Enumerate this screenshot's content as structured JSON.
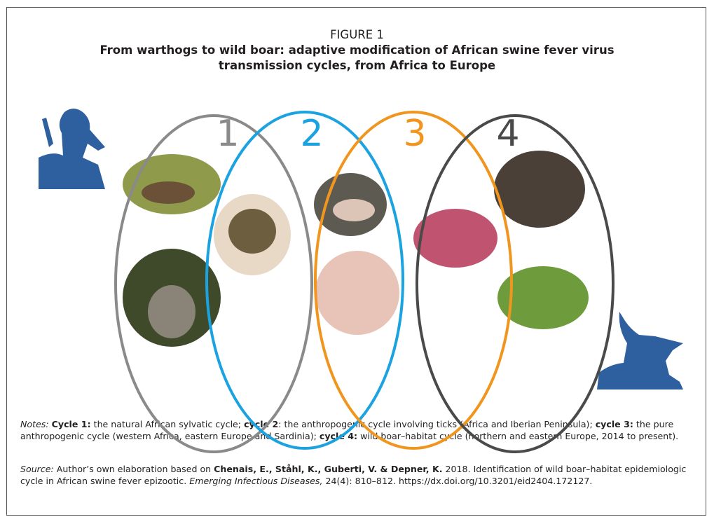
{
  "header": {
    "label": "FIGURE 1",
    "title_lines": [
      "From warthogs to wild boar: adaptive modification of African swine fever virus",
      "transmission cycles, from Africa to Europe"
    ]
  },
  "cycles": [
    {
      "number": "1",
      "color": "#8a8a8a"
    },
    {
      "number": "2",
      "color": "#1aa3e0"
    },
    {
      "number": "3",
      "color": "#f0961e"
    },
    {
      "number": "4",
      "color": "#4a4a4a"
    }
  ],
  "notes": [
    "Notes:",
    "Cycle 1:",
    "the natural African sylvatic cycle;",
    "cycle 2",
    ": the anthropogenic cycle involving ticks (Africa and Iberian Peninsula);",
    "cycle 3:",
    "the pure anthropogenic cycle (western Africa, eastern Europe and Sardinia);",
    "cycle 4:",
    "wild boar–habitat cycle (northern and eastern Europe, 2014 to present)."
  ],
  "source": [
    "Source:",
    "Author’s own elaboration based on",
    "Chenais, E., Ståhl, K., Guberti, V. & Depner, K.",
    "2018. Identification of wild boar–habitat epidemiologic cycle in African swine fever epizootic.",
    "Emerging Infectious Diseases,",
    "24(4): 810–812. https://dx.doi.org/10.3201/eid2404.172127."
  ]
}
